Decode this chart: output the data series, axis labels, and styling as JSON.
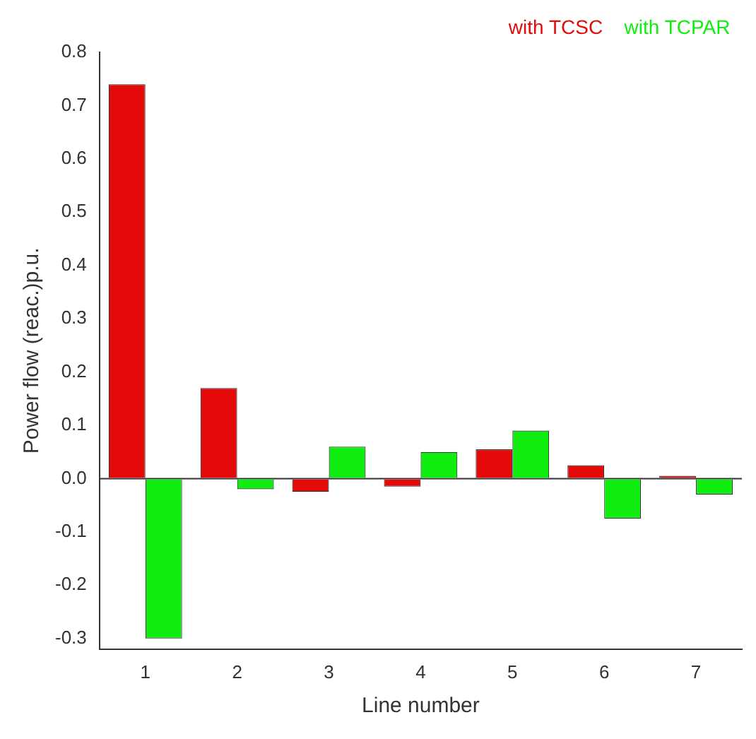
{
  "chart_data": {
    "type": "bar",
    "xlabel": "Line number",
    "ylabel": "Power flow (reac.)p.u.",
    "categories": [
      "1",
      "2",
      "3",
      "4",
      "5",
      "6",
      "7"
    ],
    "series": [
      {
        "name": "with TCSC",
        "color": "#e50a0a",
        "values": [
          0.74,
          0.17,
          -0.025,
          -0.015,
          0.055,
          0.025,
          0.002
        ]
      },
      {
        "name": "with TCPAR",
        "color": "#10ee10",
        "values": [
          -0.3,
          -0.02,
          0.06,
          0.05,
          0.09,
          -0.075,
          -0.03
        ]
      }
    ],
    "ylim": [
      -0.32,
      0.8
    ],
    "yticks": [
      -0.3,
      -0.2,
      -0.1,
      {
        "value": 0,
        "label": "0.0"
      },
      0.1,
      0.2,
      0.3,
      0.4,
      0.5,
      0.6,
      0.7,
      0.8
    ],
    "ref_lines": [
      {
        "axis": "y",
        "value": 0,
        "color": "#333333"
      }
    ],
    "legend": "top right",
    "grid": false
  }
}
